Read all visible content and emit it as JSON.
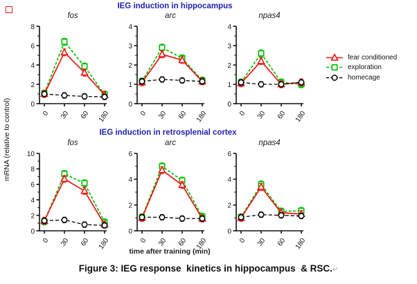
{
  "figure": {
    "section_titles": [
      "IEG induction in hippocampus",
      "IEG induction in retrosplenial cortex"
    ],
    "y_axis_label": "mRNA (relative to control)",
    "x_axis_label": "time after training (min)",
    "caption": "Figure 3: IEG response  kinetics in hippocampus  & RSC.",
    "caption_return_mark": "↵",
    "section_title_color": "#2323ae",
    "red_corner_mark_color": "#e02020"
  },
  "legend": {
    "position": "right of top row",
    "items": [
      {
        "label": "fear conditioned",
        "color": "#f21212",
        "marker": "triangle",
        "line": "solid"
      },
      {
        "label": "exploration",
        "color": "#00be00",
        "marker": "square",
        "line": "dashed"
      },
      {
        "label": "homecage",
        "color": "#000000",
        "marker": "circle",
        "line": "dashed"
      }
    ]
  },
  "chart_data": [
    {
      "type": "line",
      "region": "hippocampus",
      "title": "fos",
      "categories": [
        "0",
        "30",
        "60",
        "180"
      ],
      "ylim": [
        0,
        8
      ],
      "yticks": [
        0,
        2,
        4,
        6,
        8
      ],
      "grid": false,
      "error_bars": true,
      "series": [
        {
          "name": "fear conditioned",
          "values": [
            1.0,
            5.3,
            3.2,
            0.9
          ]
        },
        {
          "name": "exploration",
          "values": [
            1.05,
            6.4,
            3.85,
            0.95
          ]
        },
        {
          "name": "homecage",
          "values": [
            1.0,
            0.85,
            0.75,
            0.7
          ]
        }
      ]
    },
    {
      "type": "line",
      "region": "hippocampus",
      "title": "arc",
      "categories": [
        "0",
        "30",
        "60",
        "180"
      ],
      "ylim": [
        0,
        4
      ],
      "yticks": [
        0,
        1,
        2,
        3,
        4
      ],
      "grid": false,
      "error_bars": true,
      "series": [
        {
          "name": "fear conditioned",
          "values": [
            1.1,
            2.55,
            2.25,
            1.15
          ]
        },
        {
          "name": "exploration",
          "values": [
            1.15,
            2.9,
            2.35,
            1.2
          ]
        },
        {
          "name": "homecage",
          "values": [
            1.15,
            1.25,
            1.2,
            1.15
          ]
        }
      ]
    },
    {
      "type": "line",
      "region": "hippocampus",
      "title": "npas4",
      "categories": [
        "0",
        "30",
        "60",
        "180"
      ],
      "ylim": [
        0,
        4
      ],
      "yticks": [
        0,
        1,
        2,
        3,
        4
      ],
      "grid": false,
      "error_bars": true,
      "series": [
        {
          "name": "fear conditioned",
          "values": [
            1.05,
            2.2,
            1.0,
            1.1
          ]
        },
        {
          "name": "exploration",
          "values": [
            1.1,
            2.6,
            1.1,
            1.0
          ]
        },
        {
          "name": "homecage",
          "values": [
            1.1,
            1.0,
            1.0,
            1.1
          ]
        }
      ]
    },
    {
      "type": "line",
      "region": "retrosplenial cortex",
      "title": "fos",
      "categories": [
        "0",
        "30",
        "60",
        "180"
      ],
      "ylim": [
        0,
        10
      ],
      "yticks": [
        0,
        2,
        4,
        6,
        8,
        10
      ],
      "grid": false,
      "error_bars": true,
      "series": [
        {
          "name": "fear conditioned",
          "values": [
            1.3,
            6.7,
            5.15,
            0.8
          ]
        },
        {
          "name": "exploration",
          "values": [
            1.2,
            7.35,
            6.15,
            1.1
          ]
        },
        {
          "name": "homecage",
          "values": [
            1.3,
            1.4,
            0.8,
            0.7
          ]
        }
      ]
    },
    {
      "type": "line",
      "region": "retrosplenial cortex",
      "title": "arc",
      "categories": [
        "0",
        "30",
        "60",
        "180"
      ],
      "ylim": [
        0,
        6
      ],
      "yticks": [
        0,
        2,
        4,
        6
      ],
      "grid": false,
      "error_bars": true,
      "series": [
        {
          "name": "fear conditioned",
          "values": [
            1.0,
            4.7,
            3.55,
            0.95
          ]
        },
        {
          "name": "exploration",
          "values": [
            1.05,
            5.0,
            3.9,
            1.1
          ]
        },
        {
          "name": "homecage",
          "values": [
            1.05,
            1.05,
            0.95,
            0.95
          ]
        }
      ]
    },
    {
      "type": "line",
      "region": "retrosplenial cortex",
      "title": "npas4",
      "categories": [
        "0",
        "30",
        "60",
        "180"
      ],
      "ylim": [
        0,
        6
      ],
      "yticks": [
        0,
        2,
        4,
        6
      ],
      "grid": false,
      "error_bars": true,
      "series": [
        {
          "name": "fear conditioned",
          "values": [
            1.0,
            3.4,
            1.4,
            1.3
          ]
        },
        {
          "name": "exploration",
          "values": [
            1.05,
            3.6,
            1.5,
            1.55
          ]
        },
        {
          "name": "homecage",
          "values": [
            1.05,
            1.25,
            1.2,
            1.15
          ]
        }
      ]
    }
  ]
}
